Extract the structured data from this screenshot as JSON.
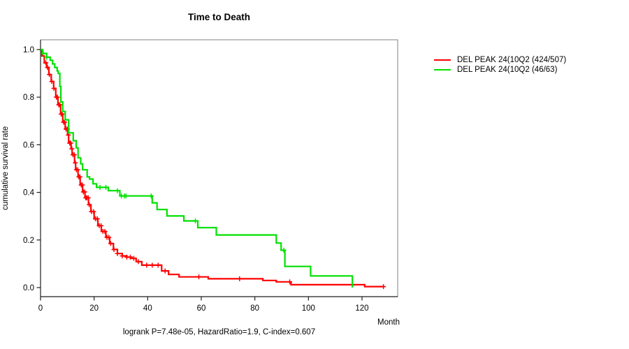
{
  "title": "Time to Death",
  "caption": "logrank P=7.48e-05, HazardRatio=1.9, C-index=0.607",
  "chart_data": {
    "type": "line",
    "subtype": "kaplan-meier-step",
    "title": "Time to Death",
    "xlabel": "Month",
    "ylabel": "cumulative survival rate",
    "xlim": [
      0,
      133
    ],
    "ylim": [
      0,
      1
    ],
    "xticks": [
      0,
      20,
      40,
      60,
      80,
      100,
      120
    ],
    "yticks": [
      0.0,
      0.2,
      0.4,
      0.6,
      0.8,
      1.0
    ],
    "grid": false,
    "legend_position": "right-outside",
    "colors": {
      "series1": "#ff0000",
      "series2": "#00e100",
      "axis": "#1f1f1f",
      "box": "#808080"
    },
    "series": [
      {
        "name": "DEL PEAK 24(10Q2 (424/507)",
        "color": "#ff0000",
        "n_events": "424/507",
        "points": [
          [
            0,
            1.0
          ],
          [
            0.5,
            0.973
          ],
          [
            1.4,
            0.944
          ],
          [
            2.3,
            0.925
          ],
          [
            3.1,
            0.895
          ],
          [
            4.0,
            0.866
          ],
          [
            4.9,
            0.837
          ],
          [
            5.7,
            0.8
          ],
          [
            6.5,
            0.768
          ],
          [
            7.5,
            0.729
          ],
          [
            8.3,
            0.695
          ],
          [
            9.2,
            0.666
          ],
          [
            10.1,
            0.641
          ],
          [
            10.5,
            0.607
          ],
          [
            11.4,
            0.583
          ],
          [
            11.8,
            0.558
          ],
          [
            12.7,
            0.524
          ],
          [
            13.1,
            0.495
          ],
          [
            14.0,
            0.465
          ],
          [
            14.8,
            0.431
          ],
          [
            15.7,
            0.402
          ],
          [
            16.6,
            0.377
          ],
          [
            17.9,
            0.348
          ],
          [
            18.8,
            0.319
          ],
          [
            20.0,
            0.289
          ],
          [
            21.4,
            0.26
          ],
          [
            22.7,
            0.236
          ],
          [
            24.4,
            0.211
          ],
          [
            25.8,
            0.185
          ],
          [
            27.2,
            0.16
          ],
          [
            28.7,
            0.143
          ],
          [
            30.5,
            0.133
          ],
          [
            32.2,
            0.128
          ],
          [
            34.0,
            0.123
          ],
          [
            35.7,
            0.109
          ],
          [
            37.8,
            0.094
          ],
          [
            45.2,
            0.07
          ],
          [
            47.8,
            0.055
          ],
          [
            51.7,
            0.045
          ],
          [
            62.6,
            0.037
          ],
          [
            83.0,
            0.03
          ],
          [
            88.0,
            0.024
          ],
          [
            93.5,
            0.012
          ],
          [
            121.0,
            0.004
          ],
          [
            128.1,
            0.004
          ]
        ],
        "censor_months": [
          2.0,
          2.6,
          3.3,
          4.2,
          5.0,
          5.9,
          6.3,
          6.8,
          7.2,
          7.7,
          8.1,
          8.6,
          9.0,
          9.5,
          10.0,
          10.4,
          10.9,
          11.3,
          11.7,
          12.1,
          12.6,
          13.0,
          13.4,
          13.9,
          14.3,
          14.7,
          15.2,
          15.6,
          16.0,
          16.5,
          16.9,
          17.3,
          17.8,
          18.2,
          19.0,
          19.8,
          20.5,
          21.2,
          21.9,
          22.6,
          23.3,
          24.0,
          24.8,
          25.5,
          26.2,
          27.4,
          28.7,
          30.5,
          32.2,
          33.5,
          34.8,
          36.5,
          39.6,
          41.7,
          43.9,
          46.5,
          59.1,
          74.3,
          93.0,
          128.0
        ]
      },
      {
        "name": "DEL PEAK 24(10Q2 (46/63)",
        "color": "#00e100",
        "n_events": "46/63",
        "points": [
          [
            0,
            1.0
          ],
          [
            0.8,
            0.984
          ],
          [
            2.3,
            0.968
          ],
          [
            3.6,
            0.955
          ],
          [
            4.5,
            0.94
          ],
          [
            5.3,
            0.925
          ],
          [
            6.2,
            0.91
          ],
          [
            6.6,
            0.9
          ],
          [
            7.2,
            0.845
          ],
          [
            7.6,
            0.78
          ],
          [
            8.3,
            0.74
          ],
          [
            9.2,
            0.705
          ],
          [
            10.5,
            0.65
          ],
          [
            12.2,
            0.617
          ],
          [
            13.3,
            0.587
          ],
          [
            14.0,
            0.545
          ],
          [
            15.0,
            0.52
          ],
          [
            15.7,
            0.495
          ],
          [
            17.4,
            0.465
          ],
          [
            18.3,
            0.456
          ],
          [
            19.6,
            0.436
          ],
          [
            20.9,
            0.421
          ],
          [
            25.3,
            0.407
          ],
          [
            29.6,
            0.385
          ],
          [
            41.7,
            0.356
          ],
          [
            43.5,
            0.328
          ],
          [
            47.2,
            0.301
          ],
          [
            53.5,
            0.28
          ],
          [
            58.7,
            0.252
          ],
          [
            65.6,
            0.221
          ],
          [
            88.0,
            0.187
          ],
          [
            89.8,
            0.157
          ],
          [
            91.2,
            0.089
          ],
          [
            100.8,
            0.049
          ],
          [
            116.4,
            0.0
          ]
        ],
        "censor_months": [
          1.0,
          2.3,
          22.2,
          24.4,
          28.7,
          30.2,
          31.3,
          31.9,
          41.3,
          57.8,
          90.8
        ]
      }
    ]
  }
}
